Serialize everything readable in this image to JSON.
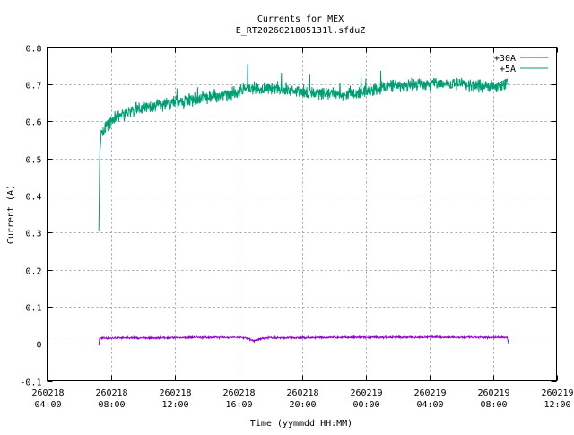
{
  "chart_data": {
    "type": "line",
    "title": "Currents for MEX",
    "subtitle": "E_RT2026021805131l.sfduZ",
    "xlabel": "Time (yymmdd HH:MM)",
    "ylabel": "Current (A)",
    "ylim": [
      -0.1,
      0.8
    ],
    "xlim_hours": [
      4,
      36
    ],
    "yticks": [
      "-0.1",
      "0",
      "0.1",
      "0.2",
      "0.3",
      "0.4",
      "0.5",
      "0.6",
      "0.7",
      "0.8"
    ],
    "xticks": [
      {
        "date": "260218",
        "time": "04:00"
      },
      {
        "date": "260218",
        "time": "08:00"
      },
      {
        "date": "260218",
        "time": "12:00"
      },
      {
        "date": "260218",
        "time": "16:00"
      },
      {
        "date": "260218",
        "time": "20:00"
      },
      {
        "date": "260219",
        "time": "00:00"
      },
      {
        "date": "260219",
        "time": "04:00"
      },
      {
        "date": "260219",
        "time": "08:00"
      },
      {
        "date": "260219",
        "time": "12:00"
      }
    ],
    "grid": true,
    "legend_position": "top-right",
    "series": [
      {
        "name": "+30A",
        "color": "#9400d3",
        "points": [
          [
            7.25,
            -0.005
          ],
          [
            7.3,
            0.015
          ],
          [
            8.0,
            0.015
          ],
          [
            9.0,
            0.016
          ],
          [
            10.0,
            0.015
          ],
          [
            11.0,
            0.016
          ],
          [
            12.0,
            0.016
          ],
          [
            13.0,
            0.017
          ],
          [
            14.0,
            0.017
          ],
          [
            15.0,
            0.017
          ],
          [
            16.0,
            0.017
          ],
          [
            16.5,
            0.016
          ],
          [
            17.0,
            0.008
          ],
          [
            17.5,
            0.014
          ],
          [
            18.0,
            0.016
          ],
          [
            20.0,
            0.016
          ],
          [
            22.0,
            0.017
          ],
          [
            24.0,
            0.017
          ],
          [
            26.0,
            0.017
          ],
          [
            28.0,
            0.018
          ],
          [
            30.0,
            0.017
          ],
          [
            32.0,
            0.017
          ],
          [
            32.9,
            0.017
          ],
          [
            33.0,
            -0.002
          ]
        ]
      },
      {
        "name": "+5A",
        "color": "#009e73",
        "points": [
          [
            7.25,
            0.305
          ],
          [
            7.3,
            0.5
          ],
          [
            7.4,
            0.56
          ],
          [
            7.6,
            0.58
          ],
          [
            8.0,
            0.6
          ],
          [
            8.5,
            0.615
          ],
          [
            9.0,
            0.625
          ],
          [
            10.0,
            0.635
          ],
          [
            11.0,
            0.645
          ],
          [
            12.0,
            0.65
          ],
          [
            13.0,
            0.655
          ],
          [
            14.0,
            0.665
          ],
          [
            15.0,
            0.67
          ],
          [
            16.0,
            0.68
          ],
          [
            17.0,
            0.69
          ],
          [
            18.0,
            0.69
          ],
          [
            19.0,
            0.685
          ],
          [
            20.0,
            0.68
          ],
          [
            21.0,
            0.675
          ],
          [
            22.0,
            0.675
          ],
          [
            23.0,
            0.672
          ],
          [
            24.0,
            0.68
          ],
          [
            25.0,
            0.69
          ],
          [
            26.0,
            0.695
          ],
          [
            27.0,
            0.7
          ],
          [
            28.0,
            0.7
          ],
          [
            29.0,
            0.7
          ],
          [
            30.0,
            0.7
          ],
          [
            31.0,
            0.695
          ],
          [
            32.0,
            0.695
          ],
          [
            33.0,
            0.7
          ]
        ]
      }
    ]
  }
}
